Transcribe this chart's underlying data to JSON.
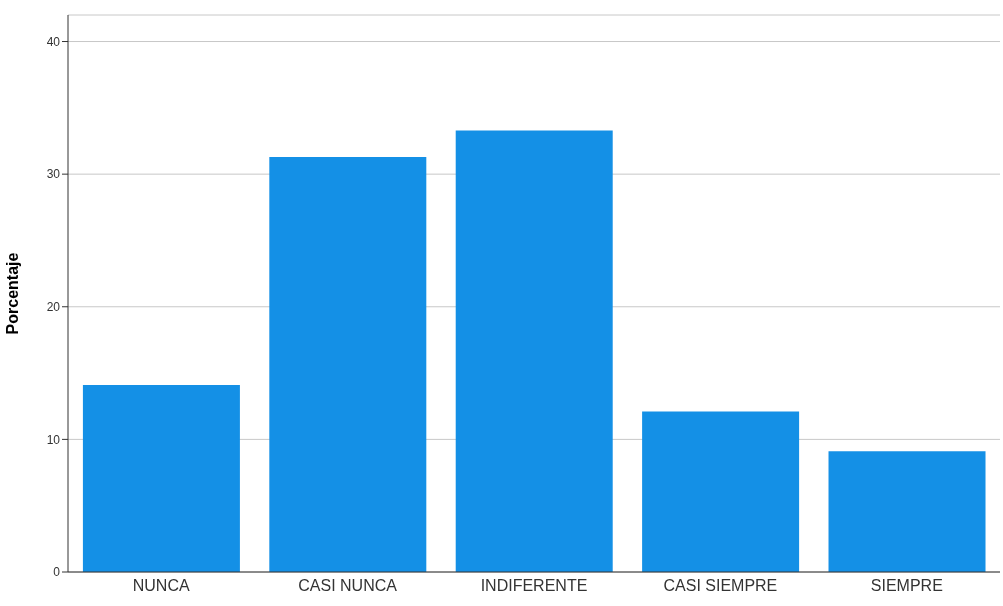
{
  "chart_data": {
    "type": "bar",
    "ylabel": "Porcentaje",
    "categories": [
      "NUNCA",
      "CASI NUNCA",
      "INDIFERENTE",
      "CASI SIEMPRE",
      "SIEMPRE"
    ],
    "values": [
      14.1,
      31.3,
      33.3,
      12.1,
      9.1
    ],
    "color": "#1490e6",
    "ylim": [
      0,
      42
    ],
    "yticks": [
      0,
      10,
      20,
      30,
      40
    ],
    "grid": "y"
  }
}
